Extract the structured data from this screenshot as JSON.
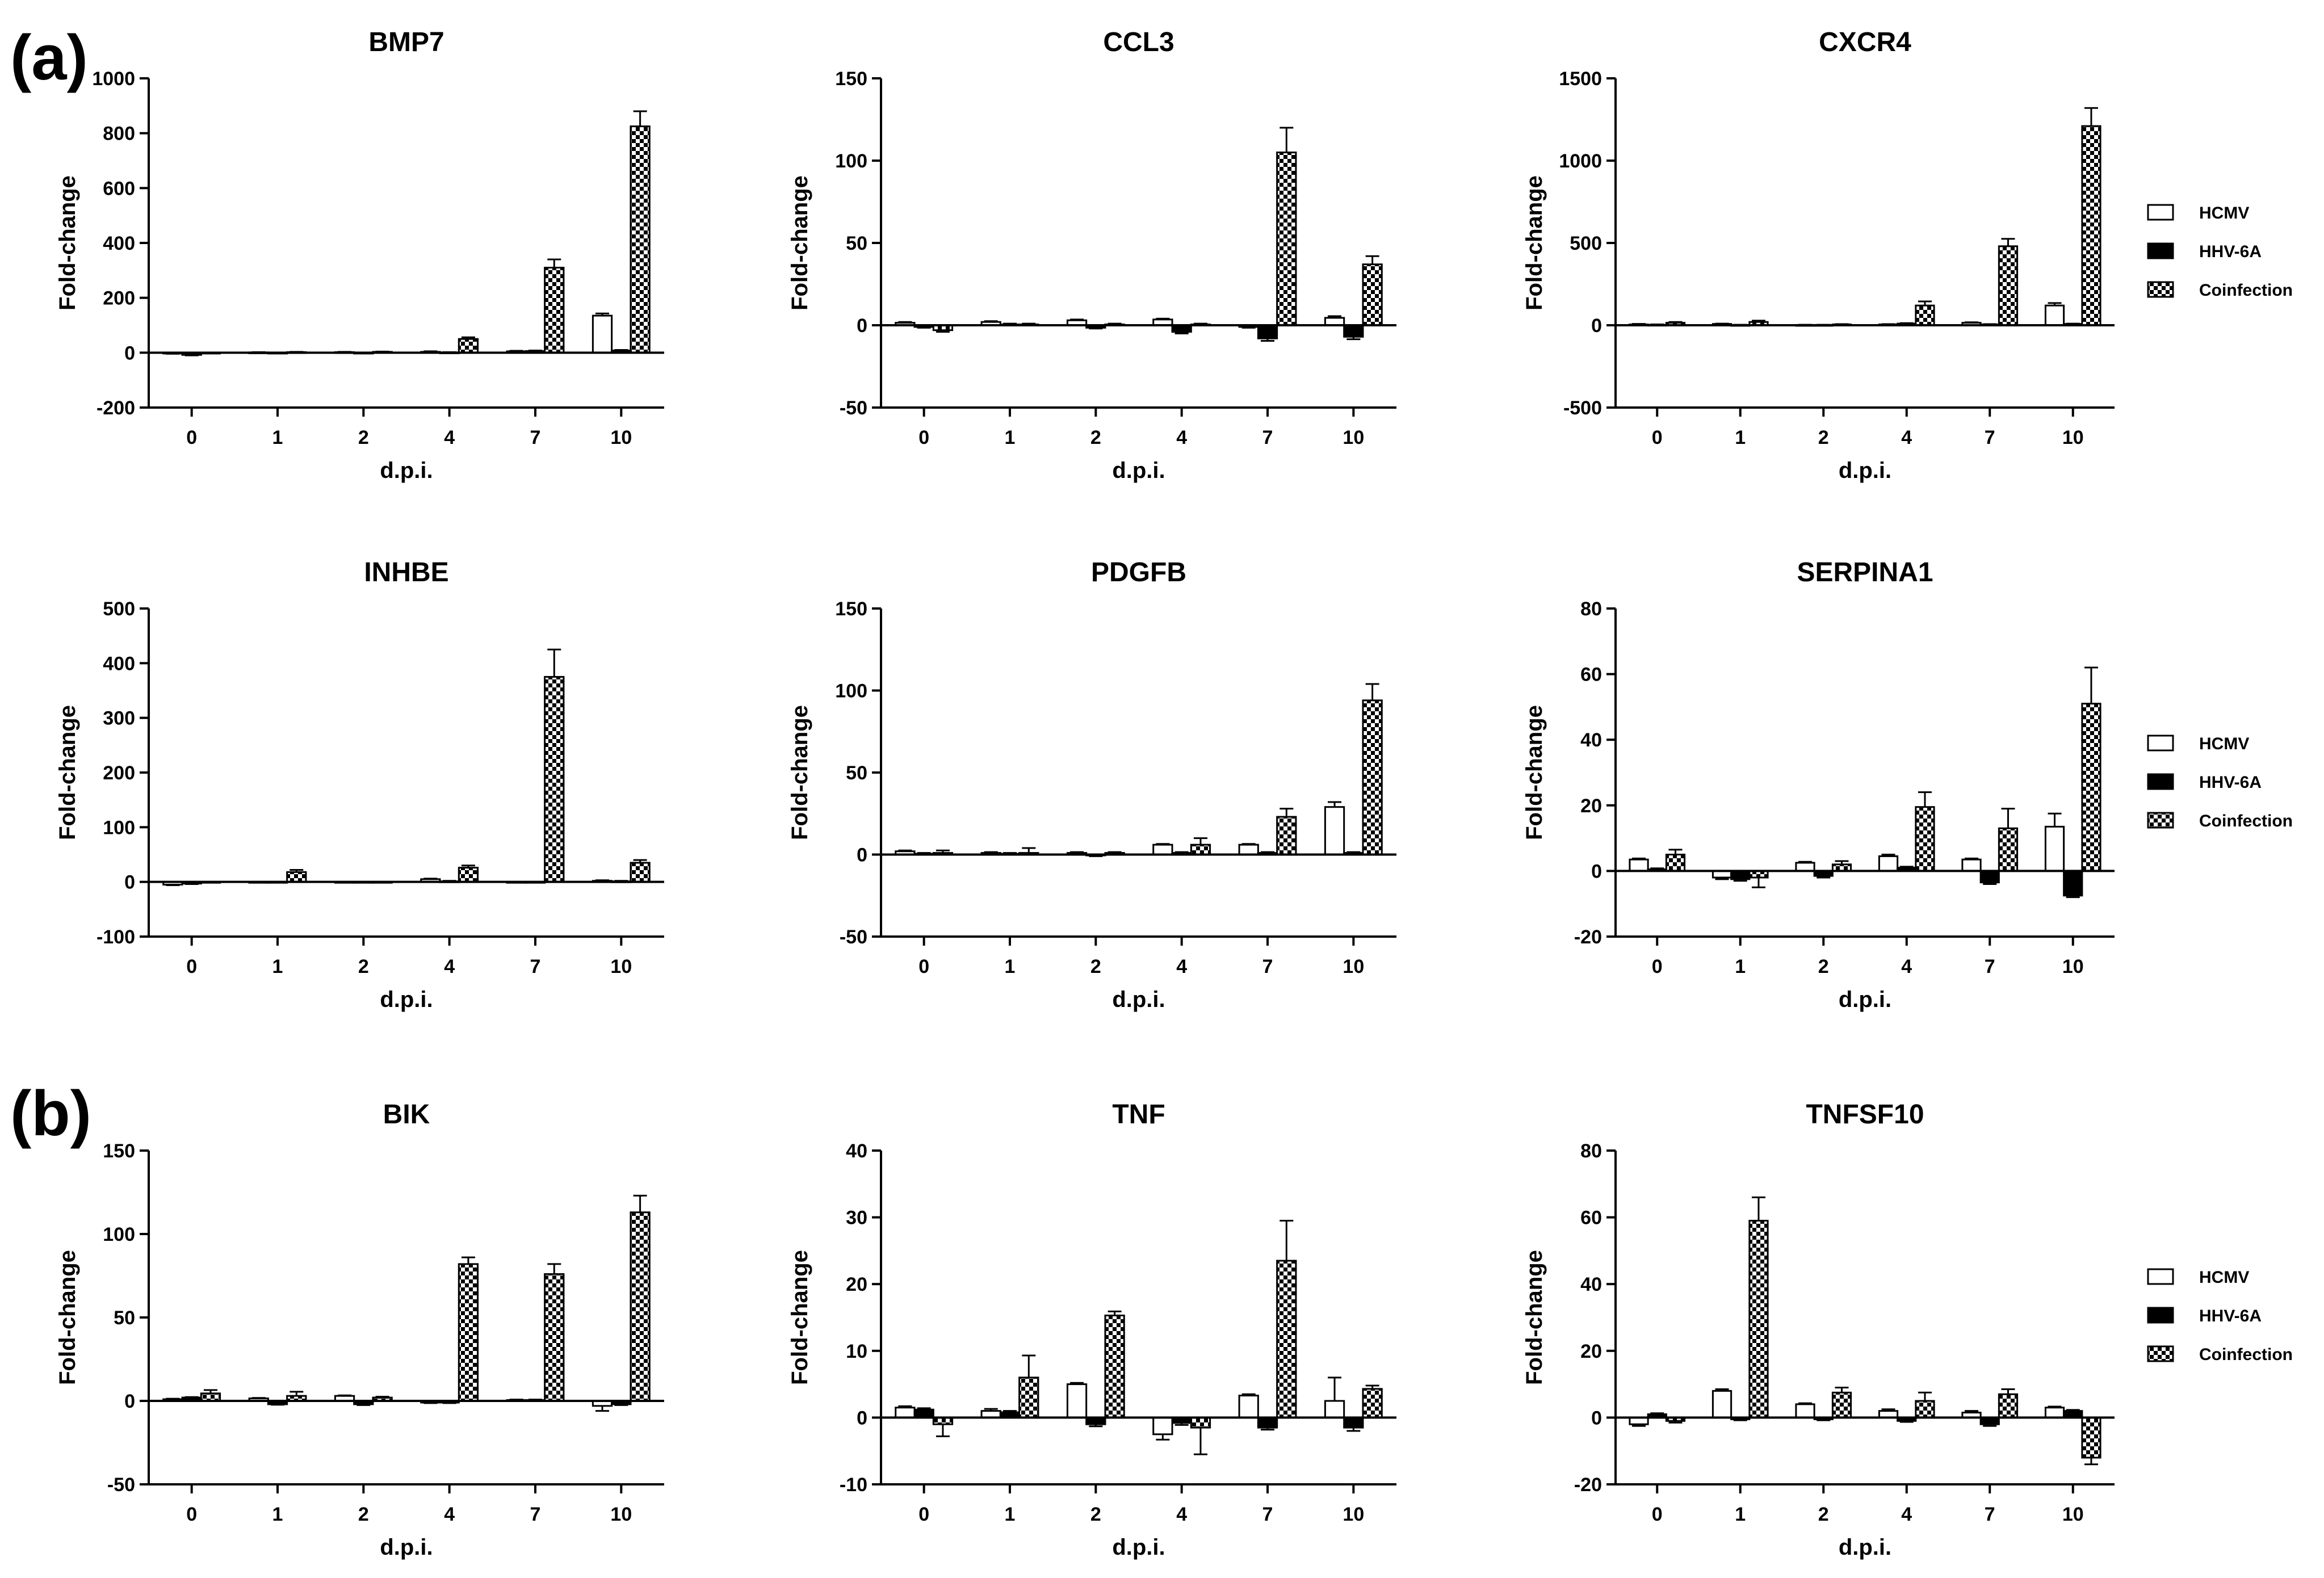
{
  "figure": {
    "panel_labels": [
      "(a)",
      "(b)"
    ]
  },
  "legend": {
    "items": [
      {
        "label": "HCMV",
        "fill": "#ffffff",
        "pattern": "none"
      },
      {
        "label": "HHV-6A",
        "fill": "#000000",
        "pattern": "none"
      },
      {
        "label": "Coinfection",
        "fill": "#ffffff",
        "pattern": "checker"
      }
    ]
  },
  "colors": {
    "axis": "#000000",
    "hcmv": "#ffffff",
    "hhv6a": "#000000",
    "checker": "#000000"
  },
  "chart_data": [
    {
      "type": "bar",
      "title": "BMP7",
      "xlabel": "d.p.i.",
      "ylabel": "Fold-change",
      "categories": [
        "0",
        "1",
        "2",
        "4",
        "7",
        "10"
      ],
      "ylim": [
        -200,
        1000
      ],
      "yticks": [
        "-200",
        "0",
        "200",
        "400",
        "600",
        "800",
        "1000"
      ],
      "ytick_values": [
        -200,
        0,
        200,
        400,
        600,
        800,
        1000
      ],
      "legend": false,
      "series": [
        {
          "name": "HCMV",
          "values": [
            -2,
            1,
            2,
            3,
            5,
            135
          ],
          "errors": [
            2,
            1,
            1,
            2,
            2,
            8
          ]
        },
        {
          "name": "HHV-6A",
          "values": [
            -8,
            -1,
            -1,
            1,
            6,
            8
          ],
          "errors": [
            2,
            1,
            1,
            1,
            2,
            2
          ]
        },
        {
          "name": "Coinfection",
          "values": [
            0,
            2,
            3,
            50,
            310,
            825
          ],
          "errors": [
            0,
            1,
            1,
            6,
            30,
            55
          ]
        }
      ]
    },
    {
      "type": "bar",
      "title": "CCL3",
      "xlabel": "d.p.i.",
      "ylabel": "Fold-change",
      "categories": [
        "0",
        "1",
        "2",
        "4",
        "7",
        "10"
      ],
      "ylim": [
        -50,
        150
      ],
      "yticks": [
        "-50",
        "0",
        "50",
        "100",
        "150"
      ],
      "ytick_values": [
        -50,
        0,
        50,
        100,
        150
      ],
      "legend": false,
      "series": [
        {
          "name": "HCMV",
          "values": [
            1.5,
            2,
            3,
            3.5,
            -1,
            4.5
          ],
          "errors": [
            0.5,
            0.5,
            0.5,
            0.5,
            0.5,
            1
          ]
        },
        {
          "name": "HHV-6A",
          "values": [
            -1,
            0.5,
            -1.5,
            -4,
            -8,
            -7
          ],
          "errors": [
            0.5,
            0.5,
            0.5,
            1,
            1.5,
            1.5
          ]
        },
        {
          "name": "Coinfection",
          "values": [
            -3,
            0.5,
            0.5,
            0.5,
            105,
            37
          ],
          "errors": [
            1,
            0.5,
            0.5,
            0.5,
            15,
            5
          ]
        }
      ]
    },
    {
      "type": "bar",
      "title": "CXCR4",
      "xlabel": "d.p.i.",
      "ylabel": "Fold-change",
      "categories": [
        "0",
        "1",
        "2",
        "4",
        "7",
        "10"
      ],
      "ylim": [
        -500,
        1500
      ],
      "yticks": [
        "-500",
        "0",
        "500",
        "1000",
        "1500"
      ],
      "ytick_values": [
        -500,
        0,
        500,
        1000,
        1500
      ],
      "legend": true,
      "series": [
        {
          "name": "HCMV",
          "values": [
            5,
            8,
            2,
            5,
            15,
            120
          ],
          "errors": [
            3,
            2,
            1,
            2,
            3,
            15
          ]
        },
        {
          "name": "HHV-6A",
          "values": [
            3,
            2,
            2,
            10,
            5,
            8
          ],
          "errors": [
            2,
            1,
            1,
            3,
            2,
            2
          ]
        },
        {
          "name": "Coinfection",
          "values": [
            15,
            20,
            5,
            120,
            480,
            1210
          ],
          "errors": [
            5,
            8,
            2,
            25,
            45,
            110
          ]
        }
      ]
    },
    {
      "type": "bar",
      "title": "INHBE",
      "xlabel": "d.p.i.",
      "ylabel": "Fold-change",
      "categories": [
        "0",
        "1",
        "2",
        "4",
        "7",
        "10"
      ],
      "ylim": [
        -100,
        500
      ],
      "yticks": [
        "-100",
        "0",
        "100",
        "200",
        "300",
        "400",
        "500"
      ],
      "ytick_values": [
        -100,
        0,
        100,
        200,
        300,
        400,
        500
      ],
      "legend": false,
      "series": [
        {
          "name": "HCMV",
          "values": [
            -5,
            0,
            0,
            5,
            0,
            2
          ],
          "errors": [
            1,
            0,
            0,
            1,
            0,
            1
          ]
        },
        {
          "name": "HHV-6A",
          "values": [
            -3,
            0,
            0,
            1,
            0,
            1
          ],
          "errors": [
            1,
            0,
            0,
            1,
            0,
            1
          ]
        },
        {
          "name": "Coinfection",
          "values": [
            0,
            18,
            0,
            26,
            375,
            35
          ],
          "errors": [
            0,
            4,
            0,
            4,
            50,
            5
          ]
        }
      ]
    },
    {
      "type": "bar",
      "title": "PDGFB",
      "xlabel": "d.p.i.",
      "ylabel": "Fold-change",
      "categories": [
        "0",
        "1",
        "2",
        "4",
        "7",
        "10"
      ],
      "ylim": [
        -50,
        150
      ],
      "yticks": [
        "-50",
        "0",
        "50",
        "100",
        "150"
      ],
      "ytick_values": [
        -50,
        0,
        50,
        100,
        150
      ],
      "legend": false,
      "series": [
        {
          "name": "HCMV",
          "values": [
            2,
            1,
            1,
            6,
            6,
            29
          ],
          "errors": [
            0.5,
            0.5,
            0.5,
            0.5,
            0.5,
            3
          ]
        },
        {
          "name": "HHV-6A",
          "values": [
            0.5,
            0.5,
            -0.5,
            1,
            1,
            1
          ],
          "errors": [
            0.5,
            0.5,
            0.5,
            0.5,
            0.5,
            0.5
          ]
        },
        {
          "name": "Coinfection",
          "values": [
            1,
            1,
            1,
            6,
            23,
            94
          ],
          "errors": [
            1.5,
            3,
            0.5,
            4,
            5,
            10
          ]
        }
      ]
    },
    {
      "type": "bar",
      "title": "SERPINA1",
      "xlabel": "d.p.i.",
      "ylabel": "Fold-change",
      "categories": [
        "0",
        "1",
        "2",
        "4",
        "7",
        "10"
      ],
      "ylim": [
        -20,
        80
      ],
      "yticks": [
        "-20",
        "0",
        "20",
        "40",
        "60",
        "80"
      ],
      "ytick_values": [
        -20,
        0,
        20,
        40,
        60,
        80
      ],
      "legend": true,
      "series": [
        {
          "name": "HCMV",
          "values": [
            3.5,
            -2,
            2.5,
            4.5,
            3.5,
            13.5
          ],
          "errors": [
            0.3,
            0.5,
            0.3,
            0.5,
            0.3,
            4
          ]
        },
        {
          "name": "HHV-6A",
          "values": [
            0.5,
            -2.5,
            -1.5,
            1,
            -3.5,
            -7.5
          ],
          "errors": [
            0.3,
            0.5,
            0.5,
            0.3,
            0.5,
            0.5
          ]
        },
        {
          "name": "Coinfection",
          "values": [
            5,
            -2,
            2,
            19.5,
            13,
            51
          ],
          "errors": [
            1.5,
            3,
            1,
            4.5,
            6,
            11
          ]
        }
      ]
    },
    {
      "type": "bar",
      "title": "BIK",
      "xlabel": "d.p.i.",
      "ylabel": "Fold-change",
      "categories": [
        "0",
        "1",
        "2",
        "4",
        "7",
        "10"
      ],
      "ylim": [
        -50,
        150
      ],
      "yticks": [
        "-50",
        "0",
        "50",
        "100",
        "150"
      ],
      "ytick_values": [
        -50,
        0,
        50,
        100,
        150
      ],
      "legend": false,
      "series": [
        {
          "name": "HCMV",
          "values": [
            1,
            1.5,
            3,
            -1,
            0.5,
            -3
          ],
          "errors": [
            0.3,
            0.3,
            0.3,
            0.3,
            0.3,
            3
          ]
        },
        {
          "name": "HHV-6A",
          "values": [
            2,
            -2,
            -2,
            -1,
            0.5,
            -2
          ],
          "errors": [
            0.3,
            0.3,
            0.5,
            0.3,
            0.3,
            0.5
          ]
        },
        {
          "name": "Coinfection",
          "values": [
            4.5,
            3,
            2,
            82,
            76,
            113
          ],
          "errors": [
            2,
            2.5,
            0.5,
            4,
            6,
            10
          ]
        }
      ]
    },
    {
      "type": "bar",
      "title": "TNF",
      "xlabel": "d.p.i.",
      "ylabel": "Fold-change",
      "categories": [
        "0",
        "1",
        "2",
        "4",
        "7",
        "10"
      ],
      "ylim": [
        -10,
        40
      ],
      "yticks": [
        "-10",
        "0",
        "10",
        "20",
        "30",
        "40"
      ],
      "ytick_values": [
        -10,
        0,
        10,
        20,
        30,
        40
      ],
      "legend": false,
      "series": [
        {
          "name": "HCMV",
          "values": [
            1.5,
            1,
            5,
            -2.5,
            3.3,
            2.5
          ],
          "errors": [
            0.2,
            0.3,
            0.2,
            0.8,
            0.2,
            3.5
          ]
        },
        {
          "name": "HHV-6A",
          "values": [
            1.2,
            0.8,
            -1,
            -0.8,
            -1.5,
            -1.5
          ],
          "errors": [
            0.2,
            0.2,
            0.3,
            0.3,
            0.3,
            0.5
          ]
        },
        {
          "name": "Coinfection",
          "values": [
            -1,
            6,
            15.3,
            -1.5,
            23.5,
            4.3
          ],
          "errors": [
            1.8,
            3.3,
            0.6,
            4,
            6,
            0.5
          ]
        }
      ]
    },
    {
      "type": "bar",
      "title": "TNFSF10",
      "xlabel": "d.p.i.",
      "ylabel": "Fold-change",
      "categories": [
        "0",
        "1",
        "2",
        "4",
        "7",
        "10"
      ],
      "ylim": [
        -20,
        80
      ],
      "yticks": [
        "-20",
        "0",
        "20",
        "40",
        "60",
        "80"
      ],
      "ytick_values": [
        -20,
        0,
        20,
        40,
        60,
        80
      ],
      "legend": true,
      "series": [
        {
          "name": "HCMV",
          "values": [
            -2,
            8,
            4,
            2,
            1.5,
            3
          ],
          "errors": [
            0.5,
            0.5,
            0.3,
            0.5,
            0.5,
            0.3
          ]
        },
        {
          "name": "HHV-6A",
          "values": [
            1,
            -0.5,
            -0.5,
            -1,
            -2,
            2
          ],
          "errors": [
            0.3,
            0.3,
            0.3,
            0.3,
            0.5,
            0.3
          ]
        },
        {
          "name": "Coinfection",
          "values": [
            -1,
            59,
            7.5,
            5,
            7,
            -12
          ],
          "errors": [
            0.5,
            7,
            1.5,
            2.5,
            1.5,
            2
          ]
        }
      ]
    }
  ]
}
